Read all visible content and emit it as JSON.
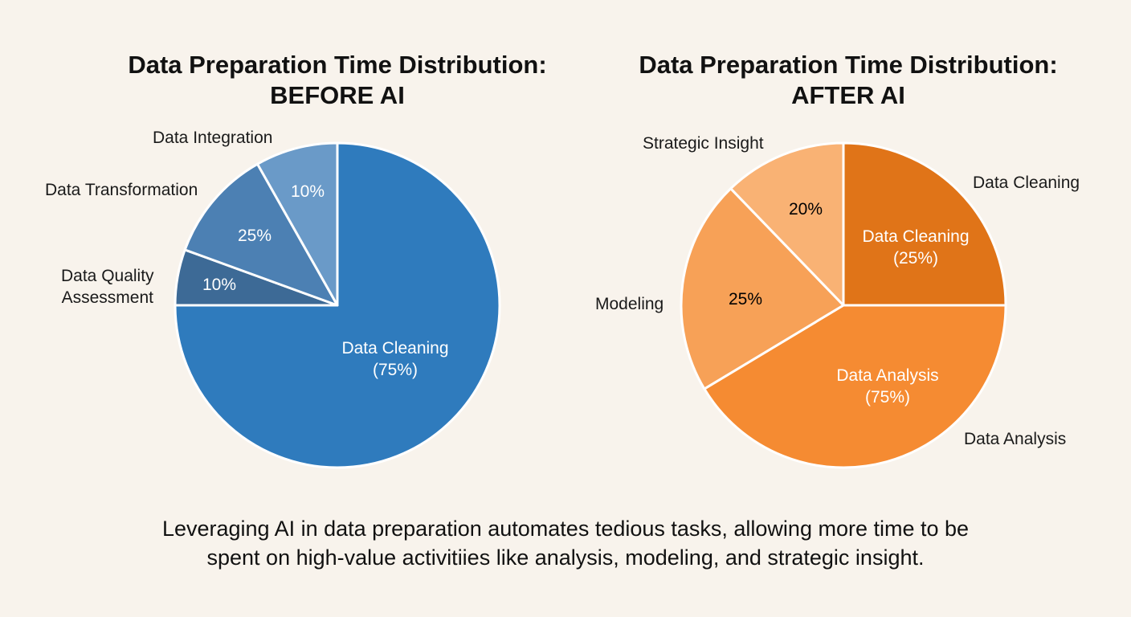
{
  "chart_data": [
    {
      "type": "pie",
      "title": "Data Preparation Time Distribution:",
      "subtitle": "BEFORE AI",
      "slices": [
        {
          "name": "Data Cleaning",
          "value": 75,
          "label": "Data Cleaning",
          "value_label": "(75%)",
          "color": "#2f7bbd"
        },
        {
          "name": "Data Quality Assessment",
          "value": 10,
          "label": "Data Quality Assessment",
          "label_line1": "Data Quality",
          "label_line2": "Assessment",
          "value_label": "10%",
          "color": "#3d6a96"
        },
        {
          "name": "Data Transformation",
          "value": 25,
          "label": "Data Transformation",
          "value_label": "25%",
          "color": "#4c80b3"
        },
        {
          "name": "Data Integration",
          "value": 10,
          "label": "Data Integration",
          "value_label": "10%",
          "color": "#6a9ac8"
        }
      ]
    },
    {
      "type": "pie",
      "title": "Data Preparation Time Distribution:",
      "subtitle": "AFTER AI",
      "slices": [
        {
          "name": "Data Cleaning",
          "value": 25,
          "label": "Data Cleaning",
          "inner_label": "Data Cleaning",
          "value_label": "(25%)",
          "color": "#e07418"
        },
        {
          "name": "Data Analysis",
          "value": 75,
          "label": "Data Analysis",
          "inner_label": "Data Analysis",
          "value_label": "(75%)",
          "color": "#f58b32"
        },
        {
          "name": "Modeling",
          "value": 25,
          "label": "Modeling",
          "value_label": "25%",
          "color": "#f7a157"
        },
        {
          "name": "Strategic Insight",
          "value": 20,
          "label": "Strategic Insight",
          "value_label": "20%",
          "color": "#f9b274"
        }
      ]
    }
  ],
  "caption": {
    "line1": "Leveraging AI in data preparation automates tedious tasks, allowing more time to be",
    "line2": "spent on high-value activitiies like analysis, modeling, and strategic insight."
  }
}
